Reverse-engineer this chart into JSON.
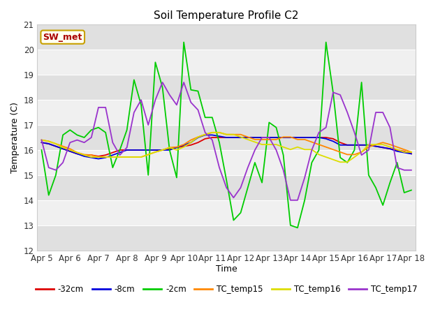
{
  "title": "Soil Temperature Profile C2",
  "xlabel": "Time",
  "ylabel": "Temperature (C)",
  "ylim": [
    12.0,
    21.0
  ],
  "yticks": [
    12.0,
    13.0,
    14.0,
    15.0,
    16.0,
    17.0,
    18.0,
    19.0,
    20.0,
    21.0
  ],
  "fig_bg": "#ffffff",
  "plot_bg_light": "#f0f0f0",
  "plot_bg_dark": "#e0e0e0",
  "annotation_text": "SW_met",
  "annotation_fg": "#aa0000",
  "annotation_bg": "#fffff0",
  "annotation_border": "#c8a000",
  "series_order": [
    "-32cm",
    "-8cm",
    "-2cm",
    "TC_temp15",
    "TC_temp16",
    "TC_temp17"
  ],
  "series": {
    "-32cm": {
      "color": "#dd0000",
      "x": [
        5,
        5.25,
        5.5,
        5.75,
        6,
        6.25,
        6.5,
        6.75,
        7,
        7.25,
        7.5,
        7.75,
        8,
        8.25,
        8.5,
        8.75,
        9,
        9.25,
        9.5,
        9.75,
        10,
        10.25,
        10.5,
        10.75,
        11,
        11.25,
        11.5,
        11.75,
        12,
        12.25,
        12.5,
        12.75,
        13,
        13.25,
        13.5,
        13.75,
        14,
        14.25,
        14.5,
        14.75,
        15,
        15.25,
        15.5,
        15.75,
        16,
        16.25,
        16.5,
        16.75,
        17,
        17.25,
        17.5,
        17.75,
        18
      ],
      "y": [
        16.3,
        16.25,
        16.15,
        16.05,
        15.95,
        15.85,
        15.8,
        15.8,
        15.75,
        15.8,
        15.9,
        16.0,
        16.0,
        16.0,
        16.0,
        16.0,
        16.0,
        16.0,
        16.05,
        16.1,
        16.15,
        16.2,
        16.3,
        16.45,
        16.5,
        16.5,
        16.5,
        16.5,
        16.5,
        16.5,
        16.5,
        16.5,
        16.5,
        16.5,
        16.5,
        16.5,
        16.5,
        16.5,
        16.5,
        16.5,
        16.5,
        16.45,
        16.3,
        16.2,
        16.2,
        16.2,
        16.2,
        16.15,
        16.1,
        16.05,
        16.0,
        15.95,
        15.85
      ]
    },
    "-8cm": {
      "color": "#0000dd",
      "x": [
        5,
        5.25,
        5.5,
        5.75,
        6,
        6.25,
        6.5,
        6.75,
        7,
        7.25,
        7.5,
        7.75,
        8,
        8.25,
        8.5,
        8.75,
        9,
        9.25,
        9.5,
        9.75,
        10,
        10.25,
        10.5,
        10.75,
        11,
        11.25,
        11.5,
        11.75,
        12,
        12.25,
        12.5,
        12.75,
        13,
        13.25,
        13.5,
        13.75,
        14,
        14.25,
        14.5,
        14.75,
        15,
        15.25,
        15.5,
        15.75,
        16,
        16.25,
        16.5,
        16.75,
        17,
        17.25,
        17.5,
        17.75,
        18
      ],
      "y": [
        16.3,
        16.25,
        16.15,
        16.05,
        15.95,
        15.85,
        15.75,
        15.7,
        15.65,
        15.7,
        15.8,
        15.9,
        16.0,
        16.0,
        16.0,
        16.0,
        16.0,
        16.0,
        16.0,
        16.1,
        16.2,
        16.3,
        16.5,
        16.6,
        16.6,
        16.55,
        16.5,
        16.5,
        16.5,
        16.5,
        16.5,
        16.5,
        16.5,
        16.5,
        16.5,
        16.5,
        16.5,
        16.5,
        16.5,
        16.5,
        16.45,
        16.35,
        16.2,
        16.2,
        16.2,
        16.2,
        16.2,
        16.15,
        16.1,
        16.05,
        15.95,
        15.9,
        15.85
      ]
    },
    "-2cm": {
      "color": "#00cc00",
      "x": [
        5,
        5.25,
        5.5,
        5.75,
        6,
        6.25,
        6.5,
        6.75,
        7,
        7.25,
        7.5,
        7.75,
        8,
        8.25,
        8.5,
        8.75,
        9,
        9.25,
        9.5,
        9.75,
        10,
        10.25,
        10.5,
        10.75,
        11,
        11.25,
        11.5,
        11.75,
        12,
        12.25,
        12.5,
        12.75,
        13,
        13.25,
        13.5,
        13.75,
        14,
        14.25,
        14.5,
        14.75,
        15,
        15.25,
        15.5,
        15.75,
        16,
        16.25,
        16.5,
        16.75,
        17,
        17.25,
        17.5,
        17.75,
        18
      ],
      "y": [
        16.0,
        14.2,
        15.0,
        16.6,
        16.8,
        16.6,
        16.5,
        16.8,
        16.9,
        16.7,
        15.3,
        16.0,
        16.8,
        18.8,
        17.8,
        15.0,
        19.5,
        18.5,
        16.0,
        14.9,
        20.3,
        18.4,
        18.35,
        17.3,
        17.3,
        16.3,
        14.8,
        13.2,
        13.5,
        14.5,
        15.5,
        14.7,
        17.1,
        16.9,
        15.8,
        13.0,
        12.9,
        14.0,
        15.5,
        16.0,
        20.3,
        18.3,
        15.7,
        15.5,
        16.0,
        18.7,
        15.0,
        14.5,
        13.8,
        14.7,
        15.5,
        14.3,
        14.4
      ]
    },
    "TC_temp15": {
      "color": "#ff8800",
      "x": [
        5,
        5.25,
        5.5,
        5.75,
        6,
        6.25,
        6.5,
        6.75,
        7,
        7.25,
        7.5,
        7.75,
        8,
        8.25,
        8.5,
        8.75,
        9,
        9.25,
        9.5,
        9.75,
        10,
        10.25,
        10.5,
        10.75,
        11,
        11.25,
        11.5,
        11.75,
        12,
        12.25,
        12.5,
        12.75,
        13,
        13.25,
        13.5,
        13.75,
        14,
        14.25,
        14.5,
        14.75,
        15,
        15.25,
        15.5,
        15.75,
        16,
        16.25,
        16.5,
        16.75,
        17,
        17.25,
        17.5,
        17.75,
        18
      ],
      "y": [
        16.4,
        16.35,
        16.25,
        16.15,
        16.05,
        15.9,
        15.82,
        15.8,
        15.72,
        15.72,
        15.72,
        15.72,
        15.72,
        15.72,
        15.72,
        15.82,
        15.92,
        16.0,
        16.1,
        16.12,
        16.22,
        16.4,
        16.52,
        16.62,
        16.7,
        16.7,
        16.62,
        16.62,
        16.62,
        16.52,
        16.42,
        16.42,
        16.42,
        16.42,
        16.52,
        16.52,
        16.42,
        16.42,
        16.32,
        16.22,
        16.12,
        16.02,
        15.92,
        15.82,
        15.82,
        15.92,
        16.12,
        16.22,
        16.3,
        16.22,
        16.12,
        16.02,
        15.92
      ]
    },
    "TC_temp16": {
      "color": "#dddd00",
      "x": [
        5,
        5.25,
        5.5,
        5.75,
        6,
        6.25,
        6.5,
        6.75,
        7,
        7.25,
        7.5,
        7.75,
        8,
        8.25,
        8.5,
        8.75,
        9,
        9.25,
        9.5,
        9.75,
        10,
        10.25,
        10.5,
        10.75,
        11,
        11.25,
        11.5,
        11.75,
        12,
        12.25,
        12.5,
        12.75,
        13,
        13.25,
        13.5,
        13.75,
        14,
        14.25,
        14.5,
        14.75,
        15,
        15.25,
        15.5,
        15.75,
        16,
        16.25,
        16.5,
        16.75,
        17,
        17.25,
        17.5,
        17.75,
        18
      ],
      "y": [
        16.4,
        16.35,
        16.25,
        16.1,
        16.0,
        15.9,
        15.8,
        15.72,
        15.72,
        15.72,
        15.72,
        15.72,
        15.72,
        15.72,
        15.72,
        15.82,
        15.92,
        16.0,
        16.1,
        16.0,
        16.12,
        16.3,
        16.52,
        16.62,
        16.7,
        16.7,
        16.62,
        16.62,
        16.52,
        16.42,
        16.32,
        16.22,
        16.22,
        16.22,
        16.12,
        16.02,
        16.12,
        16.02,
        16.02,
        15.82,
        15.72,
        15.62,
        15.52,
        15.52,
        15.72,
        15.92,
        16.22,
        16.22,
        16.22,
        16.12,
        16.02,
        15.92,
        15.92
      ]
    },
    "TC_temp17": {
      "color": "#9933cc",
      "x": [
        5,
        5.25,
        5.5,
        5.75,
        6,
        6.25,
        6.5,
        6.75,
        7,
        7.25,
        7.5,
        7.75,
        8,
        8.25,
        8.5,
        8.75,
        9,
        9.25,
        9.5,
        9.75,
        10,
        10.25,
        10.5,
        10.75,
        11,
        11.25,
        11.5,
        11.75,
        12,
        12.25,
        12.5,
        12.75,
        13,
        13.25,
        13.5,
        13.75,
        14,
        14.25,
        14.5,
        14.75,
        15,
        15.25,
        15.5,
        15.75,
        16,
        16.25,
        16.5,
        16.75,
        17,
        17.25,
        17.5,
        17.75,
        18
      ],
      "y": [
        16.4,
        15.3,
        15.2,
        15.5,
        16.3,
        16.4,
        16.3,
        16.5,
        17.7,
        17.7,
        16.3,
        15.8,
        16.1,
        17.5,
        18.0,
        17.0,
        18.0,
        18.7,
        18.2,
        17.8,
        18.7,
        17.9,
        17.6,
        16.7,
        16.4,
        15.3,
        14.5,
        14.1,
        14.5,
        15.3,
        16.0,
        16.5,
        16.5,
        16.0,
        15.2,
        14.0,
        14.0,
        14.9,
        16.0,
        16.7,
        16.9,
        18.3,
        18.2,
        17.5,
        16.7,
        15.8,
        16.0,
        17.5,
        17.5,
        16.9,
        15.3,
        15.2,
        15.2
      ]
    }
  },
  "xtick_positions": [
    5,
    6,
    7,
    8,
    9,
    10,
    11,
    12,
    13,
    14,
    15,
    16,
    17,
    18
  ],
  "xtick_labels": [
    "Apr 5",
    "Apr 6",
    "Apr 7",
    "Apr 8",
    "Apr 9",
    "Apr 10",
    "Apr 11",
    "Apr 12",
    "Apr 13",
    "Apr 14",
    "Apr 15",
    "Apr 16",
    "Apr 17",
    "Apr 18"
  ],
  "legend_entries": [
    {
      "label": "-32cm",
      "color": "#dd0000"
    },
    {
      "label": "-8cm",
      "color": "#0000dd"
    },
    {
      "label": "-2cm",
      "color": "#00cc00"
    },
    {
      "label": "TC_temp15",
      "color": "#ff8800"
    },
    {
      "label": "TC_temp16",
      "color": "#dddd00"
    },
    {
      "label": "TC_temp17",
      "color": "#9933cc"
    }
  ]
}
